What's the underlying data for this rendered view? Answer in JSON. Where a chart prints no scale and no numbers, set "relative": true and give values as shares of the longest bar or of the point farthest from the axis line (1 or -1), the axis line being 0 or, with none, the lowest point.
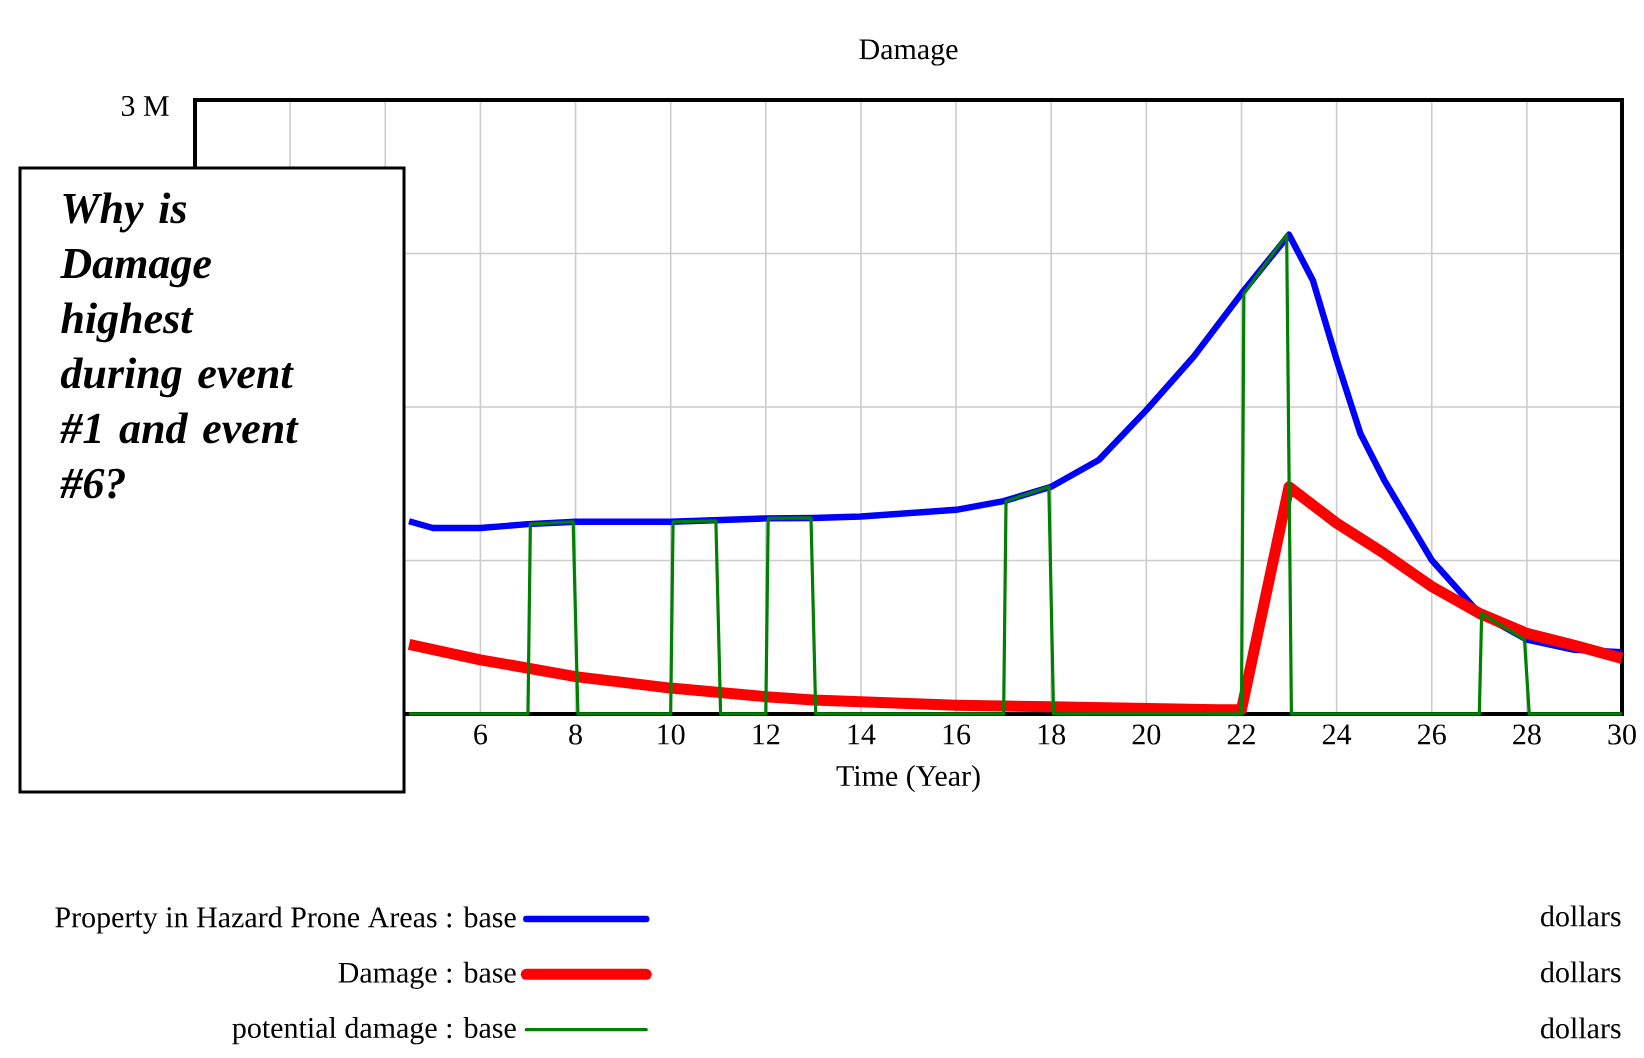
{
  "chart_data": {
    "type": "line",
    "title": "Damage",
    "xlabel": "Time (Year)",
    "relative": true,
    "xlim": [
      0,
      30
    ],
    "xticks": [
      {
        "value": 0,
        "label": null
      },
      {
        "value": 2,
        "label": null
      },
      {
        "value": 4,
        "label": null
      },
      6,
      8,
      10,
      12,
      14,
      16,
      18,
      20,
      22,
      24,
      26,
      28,
      30
    ],
    "grid": true,
    "legend": "bottom",
    "annotations": [
      "Why is Damage highest during event #1 and event #6?",
      "dollars",
      "dollars",
      "dollars",
      "3 M"
    ],
    "series": [
      {
        "name": "Property in Hazard Prone Areas : base",
        "color": "#0000ff",
        "x": [
          4.5,
          5,
          6,
          7,
          8,
          10,
          12,
          13,
          14,
          16,
          17,
          18,
          19,
          20,
          21,
          22,
          23,
          23.5,
          24,
          24.5,
          25,
          26,
          27,
          28,
          29,
          30
        ],
        "values": [
          0.402,
          0.388,
          0.388,
          0.396,
          0.401,
          0.401,
          0.408,
          0.409,
          0.412,
          0.426,
          0.444,
          0.474,
          0.53,
          0.634,
          0.746,
          0.877,
          1,
          0.905,
          0.739,
          0.585,
          0.488,
          0.321,
          0.21,
          0.155,
          0.134,
          0.129
        ]
      },
      {
        "name": "Damage : base",
        "color": "#ff0000",
        "x": [
          4.5,
          6,
          8,
          10,
          12,
          13,
          16,
          18,
          21.5,
          22,
          23,
          24,
          25,
          26,
          27,
          28,
          29,
          30
        ],
        "values": [
          0.145,
          0.113,
          0.078,
          0.054,
          0.036,
          0.029,
          0.018,
          0.015,
          0.009,
          0.009,
          0.474,
          0.398,
          0.335,
          0.266,
          0.21,
          0.168,
          0.143,
          0.116
        ]
      },
      {
        "name": "potential damage : base",
        "color": "#008000",
        "x": [
          4.5,
          7,
          7.05,
          7.95,
          8.05,
          10,
          10.05,
          10.95,
          11.05,
          12,
          12.05,
          12.95,
          13.05,
          17,
          17.05,
          17.95,
          18.05,
          22,
          22.05,
          22.95,
          23.05,
          27,
          27.05,
          27.95,
          28.05,
          30
        ],
        "values": [
          0,
          0,
          0.396,
          0.401,
          0,
          0,
          0.401,
          0.403,
          0,
          0,
          0.408,
          0.409,
          0,
          0,
          0.444,
          0.474,
          0,
          0,
          0.877,
          1,
          0,
          0,
          0.21,
          0.155,
          0,
          0
        ]
      }
    ]
  }
}
